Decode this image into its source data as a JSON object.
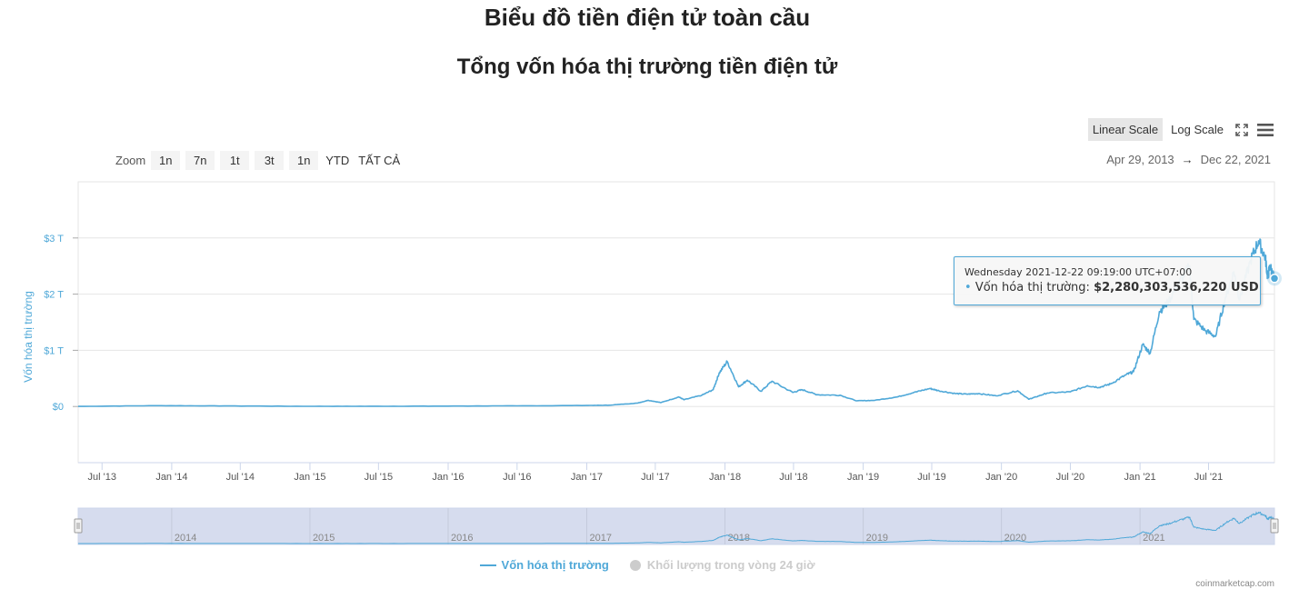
{
  "header": {
    "title": "Biểu đồ tiền điện tử toàn cầu",
    "subtitle": "Tổng vốn hóa thị trường tiền điện tử"
  },
  "toolbar": {
    "linear_scale": "Linear Scale",
    "log_scale": "Log Scale",
    "fullscreen_icon": "fullscreen-icon",
    "menu_icon": "hamburger-menu-icon"
  },
  "zoom": {
    "label": "Zoom",
    "buttons": [
      "1n",
      "7n",
      "1t",
      "3t",
      "1n",
      "YTD",
      "TẤT CẢ"
    ]
  },
  "date_range": {
    "from": "Apr 29, 2013",
    "arrow": "→",
    "to": "Dec 22, 2021"
  },
  "tooltip": {
    "date": "Wednesday 2021-12-22 09:19:00 UTC+07:00",
    "bullet": "•",
    "series": "Vốn hóa thị trường:",
    "value": "$2,280,303,536,220 USD"
  },
  "legend": {
    "items": [
      {
        "label": "Vốn hóa thị trường",
        "active": true
      },
      {
        "label": "Khối lượng trong vòng 24 giờ",
        "active": false
      }
    ]
  },
  "credit": "coinmarketcap.com",
  "colors": {
    "line": "#4fa8d8",
    "grid": "#e6e6e6",
    "navigator_fill": "#d6dcee",
    "inactive": "#cccccc"
  },
  "chart_data": {
    "type": "line",
    "ylabel": "Vốn hóa thị trường",
    "y_unit": "USD (trillions)",
    "ylim": [
      -1,
      4
    ],
    "y_ticks": [
      "$0",
      "$1 T",
      "$2 T",
      "$3 T"
    ],
    "y_tick_values": [
      0,
      1,
      2,
      3
    ],
    "x_range": [
      "2013-04-29",
      "2021-12-22"
    ],
    "x_ticks": [
      "Jul '13",
      "Jan '14",
      "Jul '14",
      "Jan '15",
      "Jul '15",
      "Jan '16",
      "Jul '16",
      "Jan '17",
      "Jul '17",
      "Jan '18",
      "Jul '18",
      "Jan '19",
      "Jul '19",
      "Jan '20",
      "Jul '20",
      "Jan '21",
      "Jul '21"
    ],
    "x_tick_dates": [
      "2013-07-01",
      "2014-01-01",
      "2014-07-01",
      "2015-01-01",
      "2015-07-01",
      "2016-01-01",
      "2016-07-01",
      "2017-01-01",
      "2017-07-01",
      "2018-01-01",
      "2018-07-01",
      "2019-01-01",
      "2019-07-01",
      "2020-01-01",
      "2020-07-01",
      "2021-01-01",
      "2021-07-01"
    ],
    "navigator_ticks": [
      "2014",
      "2015",
      "2016",
      "2017",
      "2018",
      "2019",
      "2020",
      "2021"
    ],
    "navigator_tick_dates": [
      "2014-01-01",
      "2015-01-01",
      "2016-01-01",
      "2017-01-01",
      "2018-01-01",
      "2019-01-01",
      "2020-01-01",
      "2021-01-01"
    ],
    "grid": true,
    "legend_position": "bottom-center",
    "series": [
      {
        "name": "Vốn hóa thị trường",
        "x": [
          "2013-04-29",
          "2013-12-04",
          "2014-06-01",
          "2015-01-14",
          "2015-07-01",
          "2016-01-01",
          "2016-07-01",
          "2017-01-01",
          "2017-03-01",
          "2017-05-15",
          "2017-06-12",
          "2017-07-16",
          "2017-09-01",
          "2017-09-15",
          "2017-11-01",
          "2017-12-01",
          "2017-12-17",
          "2018-01-07",
          "2018-02-06",
          "2018-03-01",
          "2018-04-06",
          "2018-05-05",
          "2018-06-29",
          "2018-07-24",
          "2018-09-01",
          "2018-11-01",
          "2018-12-15",
          "2019-02-01",
          "2019-04-01",
          "2019-05-15",
          "2019-06-26",
          "2019-07-20",
          "2019-09-01",
          "2019-10-01",
          "2019-11-01",
          "2019-12-18",
          "2020-02-13",
          "2020-03-13",
          "2020-04-01",
          "2020-05-01",
          "2020-07-01",
          "2020-08-15",
          "2020-09-15",
          "2020-10-15",
          "2020-11-24",
          "2020-12-15",
          "2021-01-08",
          "2021-01-28",
          "2021-02-21",
          "2021-03-15",
          "2021-04-14",
          "2021-05-12",
          "2021-05-23",
          "2021-06-22",
          "2021-07-20",
          "2021-08-15",
          "2021-09-06",
          "2021-09-21",
          "2021-10-20",
          "2021-11-10",
          "2021-11-28",
          "2021-12-04",
          "2021-12-10",
          "2021-12-22"
        ],
        "values": [
          0.0015,
          0.015,
          0.009,
          0.0035,
          0.0045,
          0.007,
          0.011,
          0.018,
          0.023,
          0.06,
          0.11,
          0.07,
          0.17,
          0.12,
          0.2,
          0.3,
          0.6,
          0.8,
          0.35,
          0.47,
          0.27,
          0.45,
          0.25,
          0.3,
          0.21,
          0.2,
          0.1,
          0.11,
          0.17,
          0.25,
          0.32,
          0.28,
          0.23,
          0.22,
          0.23,
          0.19,
          0.28,
          0.13,
          0.17,
          0.24,
          0.26,
          0.37,
          0.34,
          0.4,
          0.56,
          0.62,
          1.1,
          0.95,
          1.69,
          1.85,
          2.2,
          2.5,
          1.55,
          1.35,
          1.25,
          1.95,
          2.4,
          1.9,
          2.6,
          2.95,
          2.65,
          2.3,
          2.5,
          2.28
        ]
      }
    ]
  }
}
